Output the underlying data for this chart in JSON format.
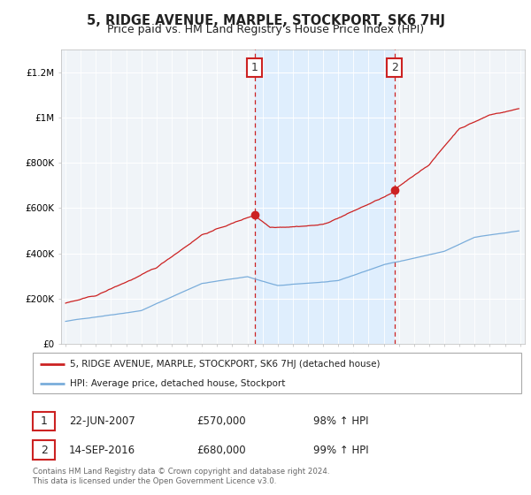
{
  "title": "5, RIDGE AVENUE, MARPLE, STOCKPORT, SK6 7HJ",
  "subtitle": "Price paid vs. HM Land Registry's House Price Index (HPI)",
  "ylabel_ticks": [
    "£0",
    "£200K",
    "£400K",
    "£600K",
    "£800K",
    "£1M",
    "£1.2M"
  ],
  "ylim": [
    0,
    1300000
  ],
  "yticks": [
    0,
    200000,
    400000,
    600000,
    800000,
    1000000,
    1200000
  ],
  "xlim_start": 1994.7,
  "xlim_end": 2025.3,
  "sale1_x": 2007.47,
  "sale1_y": 570000,
  "sale1_label": "1",
  "sale2_x": 2016.71,
  "sale2_y": 680000,
  "sale2_label": "2",
  "red_color": "#cc2222",
  "blue_color": "#7aaddb",
  "vline_color": "#cc2222",
  "shade_color": "#ddeeff",
  "plot_bg_color": "#f0f4f8",
  "legend_label_red": "5, RIDGE AVENUE, MARPLE, STOCKPORT, SK6 7HJ (detached house)",
  "legend_label_blue": "HPI: Average price, detached house, Stockport",
  "annot1_date": "22-JUN-2007",
  "annot1_price": "£570,000",
  "annot1_hpi": "98% ↑ HPI",
  "annot2_date": "14-SEP-2016",
  "annot2_price": "£680,000",
  "annot2_hpi": "99% ↑ HPI",
  "footer": "Contains HM Land Registry data © Crown copyright and database right 2024.\nThis data is licensed under the Open Government Licence v3.0.",
  "title_fontsize": 10.5,
  "subtitle_fontsize": 9
}
